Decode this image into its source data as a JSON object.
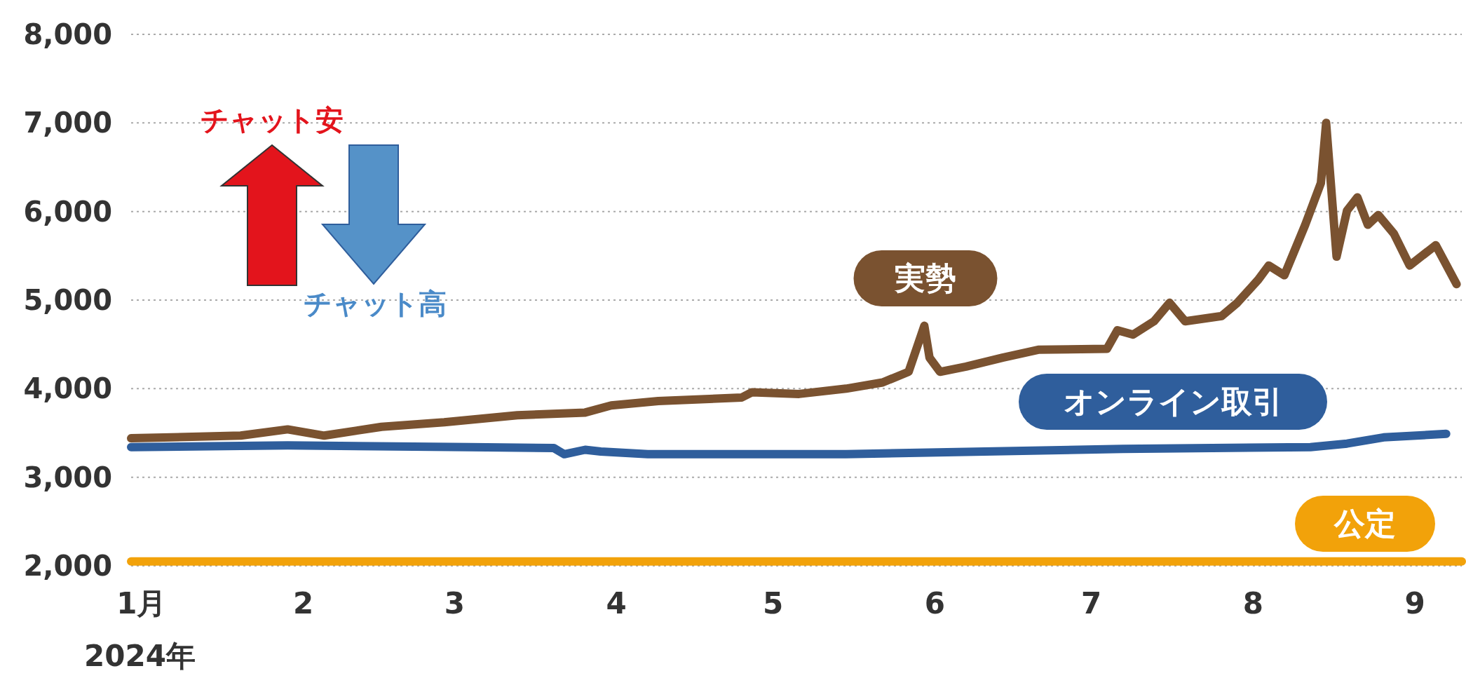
{
  "chart_data": {
    "type": "line",
    "annotations": [
      "2024年",
      "チャット安",
      "チャット高"
    ],
    "xlim": [
      "2023-12-30",
      "2024-09-10"
    ],
    "xticks": [
      {
        "value": "2024-01-01",
        "label": "1月"
      },
      {
        "value": "2024-02-01",
        "label": "2"
      },
      {
        "value": "2024-03-01",
        "label": "3"
      },
      {
        "value": "2024-04-01",
        "label": "4"
      },
      {
        "value": "2024-05-01",
        "label": "5"
      },
      {
        "value": "2024-06-01",
        "label": "6"
      },
      {
        "value": "2024-07-01",
        "label": "7"
      },
      {
        "value": "2024-08-01",
        "label": "8"
      },
      {
        "value": "2024-09-01",
        "label": "9"
      }
    ],
    "ylim": [
      2000,
      8000
    ],
    "yticks": [
      {
        "value": 2000,
        "label": "2,000"
      },
      {
        "value": 3000,
        "label": "3,000"
      },
      {
        "value": 4000,
        "label": "4,000"
      },
      {
        "value": 5000,
        "label": "5,000"
      },
      {
        "value": 6000,
        "label": "6,000"
      },
      {
        "value": 7000,
        "label": "7,000"
      },
      {
        "value": 8000,
        "label": "8,000"
      }
    ],
    "grid": "y",
    "legend": false,
    "line_style": "solid",
    "series": [
      {
        "name": "実勢",
        "color": "#7a5230",
        "x": [
          "2023-12-30",
          "2024-01-20",
          "2024-01-29",
          "2024-02-05",
          "2024-02-16",
          "2024-02-28",
          "2024-03-13",
          "2024-03-26",
          "2024-03-31",
          "2024-04-09",
          "2024-04-25",
          "2024-04-27",
          "2024-05-06",
          "2024-05-15",
          "2024-05-22",
          "2024-05-27",
          "2024-05-30",
          "2024-05-31",
          "2024-06-02",
          "2024-06-07",
          "2024-06-14",
          "2024-06-21",
          "2024-07-04",
          "2024-07-06",
          "2024-07-09",
          "2024-07-13",
          "2024-07-16",
          "2024-07-19",
          "2024-07-26",
          "2024-07-29",
          "2024-08-02",
          "2024-08-04",
          "2024-08-07",
          "2024-08-11",
          "2024-08-14",
          "2024-08-15",
          "2024-08-17",
          "2024-08-19",
          "2024-08-21",
          "2024-08-23",
          "2024-08-25",
          "2024-08-28",
          "2024-08-31",
          "2024-09-05",
          "2024-09-09"
        ],
        "values": [
          3440,
          3470,
          3540,
          3470,
          3570,
          3620,
          3700,
          3730,
          3810,
          3860,
          3900,
          3960,
          3940,
          4000,
          4070,
          4190,
          4710,
          4350,
          4190,
          4250,
          4350,
          4440,
          4450,
          4660,
          4610,
          4760,
          4970,
          4760,
          4820,
          4970,
          5230,
          5390,
          5280,
          5850,
          6320,
          7000,
          5490,
          6010,
          6160,
          5850,
          5960,
          5750,
          5390,
          5620,
          5180
        ]
      },
      {
        "name": "オンライン取引",
        "color": "#2f5e9c",
        "x": [
          "2023-12-30",
          "2024-01-29",
          "2024-03-04",
          "2024-03-20",
          "2024-03-22",
          "2024-03-26",
          "2024-03-29",
          "2024-04-07",
          "2024-05-15",
          "2024-07-07",
          "2024-08-12",
          "2024-08-19",
          "2024-08-26",
          "2024-09-07"
        ],
        "values": [
          3340,
          3360,
          3340,
          3330,
          3260,
          3310,
          3290,
          3260,
          3260,
          3320,
          3340,
          3380,
          3450,
          3490
        ]
      },
      {
        "name": "公定",
        "color": "#f2a20a",
        "x": [
          "2023-12-30",
          "2024-09-10"
        ],
        "values": [
          2050,
          2050
        ]
      }
    ]
  }
}
